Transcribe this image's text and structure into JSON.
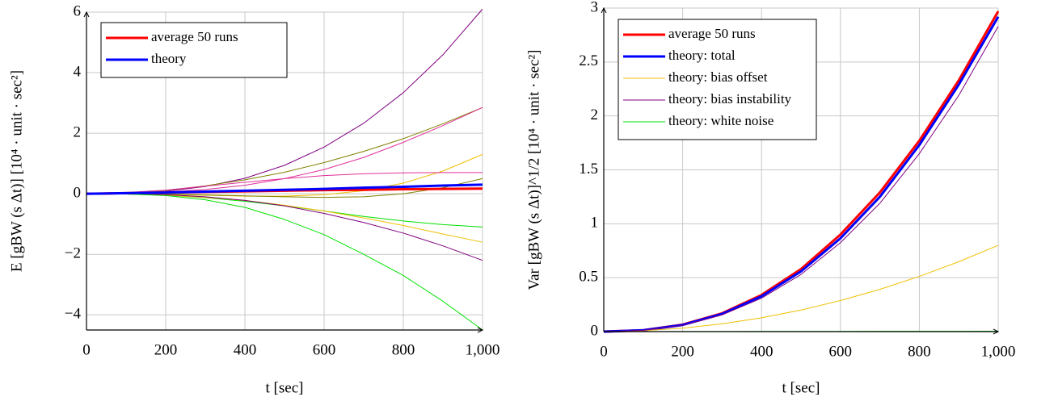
{
  "chart_data": [
    {
      "type": "line",
      "ylabel": "E [gBW (s Δt)]  [10⁴ · unit · sec²]",
      "xlabel": "t [sec]",
      "x": [
        0,
        100,
        200,
        300,
        400,
        500,
        600,
        700,
        800,
        900,
        1000
      ],
      "xlim": [
        0,
        1000
      ],
      "xticks": [
        0,
        200,
        400,
        600,
        800,
        {
          "value": 1000,
          "label": "1,000"
        }
      ],
      "ylim": [
        -4.5,
        6
      ],
      "yticks": [
        {
          "value": -4,
          "label": "−4"
        },
        {
          "value": -2,
          "label": "−2"
        },
        0,
        2,
        4,
        6
      ],
      "grid": true,
      "legend": "upper left",
      "series": [
        {
          "color": "#800080",
          "linewidth": 1,
          "values": [
            0,
            0.012,
            0.08,
            0.24,
            0.51,
            0.94,
            1.54,
            2.33,
            3.34,
            4.59,
            6.1
          ]
        },
        {
          "color": "#808000",
          "linewidth": 1,
          "values": [
            0,
            0.03,
            0.11,
            0.26,
            0.46,
            0.71,
            1.03,
            1.4,
            1.82,
            2.31,
            2.85
          ]
        },
        {
          "color": "#e0309a",
          "linewidth": 1,
          "values": [
            0,
            0.02,
            0.06,
            0.14,
            0.28,
            0.5,
            0.8,
            1.2,
            1.7,
            2.25,
            2.85
          ]
        },
        {
          "color": "#f0c000",
          "linewidth": 1,
          "values": [
            0,
            0,
            -0.02,
            -0.05,
            -0.08,
            -0.08,
            -0.03,
            0.1,
            0.35,
            0.75,
            1.3
          ]
        },
        {
          "color": "#e0309a",
          "linewidth": 1,
          "values": [
            0,
            0.04,
            0.12,
            0.25,
            0.38,
            0.5,
            0.6,
            0.66,
            0.69,
            0.7,
            0.7
          ]
        },
        {
          "color": "#808000",
          "linewidth": 1,
          "values": [
            0,
            0,
            -0.01,
            -0.04,
            -0.07,
            -0.1,
            -0.12,
            -0.1,
            0,
            0.2,
            0.5
          ]
        },
        {
          "color": "#00e000",
          "linewidth": 1,
          "values": [
            0,
            -0.01,
            -0.05,
            -0.13,
            -0.25,
            -0.4,
            -0.57,
            -0.75,
            -0.9,
            -1.02,
            -1.1
          ]
        },
        {
          "color": "#f0c000",
          "linewidth": 1,
          "values": [
            0,
            -0.01,
            -0.05,
            -0.12,
            -0.22,
            -0.38,
            -0.57,
            -0.8,
            -1.05,
            -1.33,
            -1.6
          ]
        },
        {
          "color": "#800080",
          "linewidth": 1,
          "values": [
            0,
            0,
            -0.03,
            -0.1,
            -0.22,
            -0.4,
            -0.65,
            -0.95,
            -1.3,
            -1.72,
            -2.2
          ]
        },
        {
          "color": "#00e000",
          "linewidth": 1,
          "values": [
            0,
            -0.01,
            -0.06,
            -0.2,
            -0.45,
            -0.85,
            -1.35,
            -2.0,
            -2.7,
            -3.55,
            -4.5
          ]
        },
        {
          "name": "average 50 runs",
          "color": "#ff0000",
          "linewidth": 3,
          "values": [
            0,
            0.02,
            0.04,
            0.06,
            0.08,
            0.1,
            0.12,
            0.13,
            0.15,
            0.16,
            0.17
          ]
        },
        {
          "name": "theory",
          "color": "#0000ff",
          "linewidth": 3,
          "values": [
            0,
            0.02,
            0.04,
            0.07,
            0.1,
            0.13,
            0.16,
            0.2,
            0.23,
            0.27,
            0.3
          ]
        }
      ]
    },
    {
      "type": "line",
      "ylabel": "Var [gBW (s Δt)]^1/2  [10⁴ · unit · sec²]",
      "xlabel": "t [sec]",
      "x": [
        0,
        100,
        200,
        300,
        400,
        500,
        600,
        700,
        800,
        900,
        1000
      ],
      "xlim": [
        0,
        1000
      ],
      "xticks": [
        0,
        200,
        400,
        600,
        800,
        {
          "value": 1000,
          "label": "1,000"
        }
      ],
      "ylim": [
        0,
        3
      ],
      "yticks": [
        0,
        0.5,
        1,
        1.5,
        2,
        2.5,
        3
      ],
      "grid": true,
      "legend": "upper left",
      "series": [
        {
          "name": "average 50 runs",
          "color": "#ff0000",
          "linewidth": 3,
          "values": [
            0,
            0.013,
            0.065,
            0.17,
            0.34,
            0.58,
            0.9,
            1.29,
            1.77,
            2.33,
            2.97
          ]
        },
        {
          "name": "theory: total",
          "color": "#0000ff",
          "linewidth": 3,
          "values": [
            0,
            0.012,
            0.062,
            0.164,
            0.327,
            0.558,
            0.865,
            1.25,
            1.73,
            2.29,
            2.92
          ]
        },
        {
          "name": "theory: bias offset",
          "color": "#f0c000",
          "linewidth": 1,
          "values": [
            0,
            0.008,
            0.032,
            0.072,
            0.128,
            0.2,
            0.288,
            0.392,
            0.512,
            0.648,
            0.8
          ]
        },
        {
          "name": "theory: bias instability",
          "color": "#800080",
          "linewidth": 1,
          "values": [
            0,
            0.011,
            0.058,
            0.155,
            0.31,
            0.53,
            0.825,
            1.19,
            1.65,
            2.19,
            2.83
          ]
        },
        {
          "name": "theory: white noise",
          "color": "#00e000",
          "linewidth": 1,
          "values": [
            0,
            0.0003,
            0.001,
            0.001,
            0.002,
            0.002,
            0.002,
            0.003,
            0.003,
            0.003,
            0.004
          ]
        }
      ]
    }
  ]
}
